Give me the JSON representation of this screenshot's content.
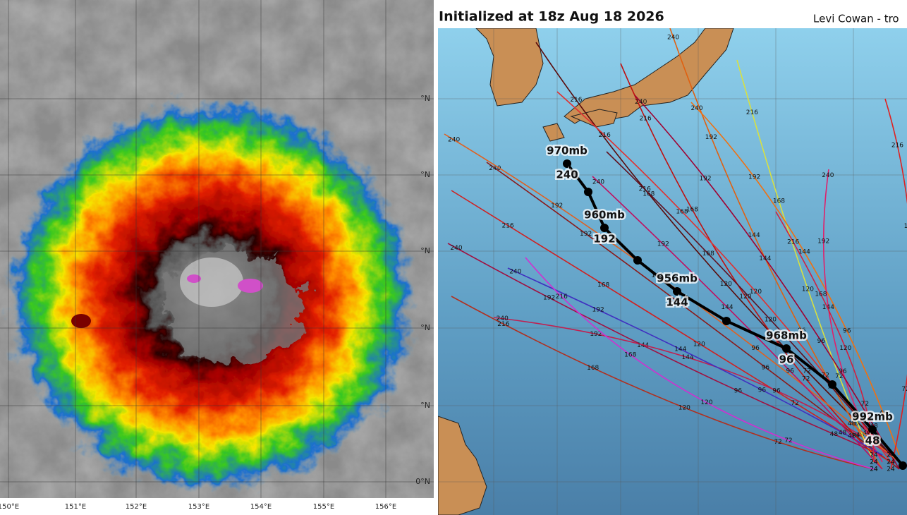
{
  "satellite": {
    "lon_labels": [
      "150°E",
      "151°E",
      "152°E",
      "153°E",
      "154°E",
      "155°E",
      "156°E"
    ],
    "lat_labels": [
      "°N",
      "°N",
      "°N",
      "°N",
      "°N",
      "0°N"
    ]
  },
  "track_map": {
    "title": "Initialized at 18z Aug 18 2026",
    "credit": "Levi Cowan - tro",
    "main_track": [
      {
        "pressure": "970mb",
        "hour": 240
      },
      {
        "pressure": "960mb",
        "hour": 192
      },
      {
        "pressure": "956mb",
        "hour": 144
      },
      {
        "pressure": "968mb",
        "hour": 96
      },
      {
        "pressure": "992mb",
        "hour": 48
      }
    ],
    "member_hours": [
      240,
      216,
      192,
      168,
      144,
      120,
      96,
      72,
      48,
      24
    ]
  }
}
